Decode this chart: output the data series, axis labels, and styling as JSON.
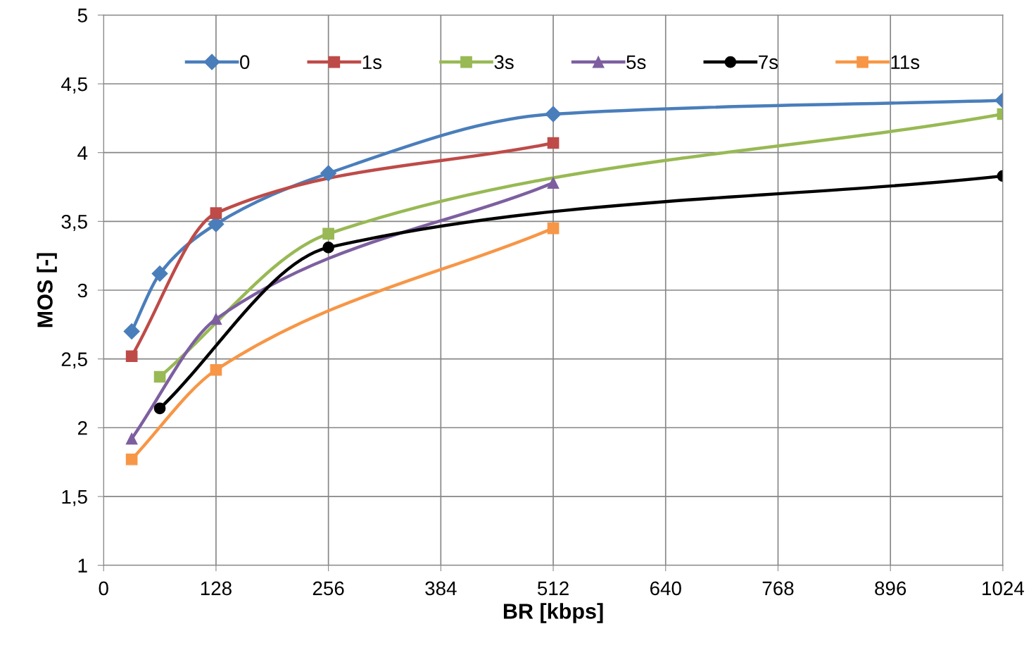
{
  "chart_data": {
    "type": "line",
    "xlabel": "BR [kbps]",
    "ylabel": "MOS [-]",
    "xlim": [
      0,
      1024
    ],
    "xticks": [
      0,
      128,
      256,
      384,
      512,
      640,
      768,
      896,
      1024
    ],
    "ylim": [
      1,
      5
    ],
    "yticks": [
      1,
      {
        "value": 1.5,
        "label": "1,5"
      },
      2,
      {
        "value": 2.5,
        "label": "2,5"
      },
      3,
      {
        "value": 3.5,
        "label": "3,5"
      },
      4,
      {
        "value": 4.5,
        "label": "4,5"
      },
      5
    ],
    "grid": true,
    "legend": "top",
    "line_style": "solid",
    "series": [
      {
        "name": "0",
        "color": "#4a7ebb",
        "marker": "diamond",
        "x": [
          32,
          64,
          128,
          256,
          512,
          1024
        ],
        "values": [
          2.7,
          3.12,
          3.48,
          3.85,
          4.28,
          4.38
        ]
      },
      {
        "name": "1s",
        "color": "#be4b48",
        "marker": "square",
        "x": [
          32,
          128,
          512
        ],
        "values": [
          2.52,
          3.56,
          4.07
        ]
      },
      {
        "name": "3s",
        "color": "#98b954",
        "marker": "square",
        "x": [
          64,
          256,
          1024
        ],
        "values": [
          2.37,
          3.41,
          4.28
        ]
      },
      {
        "name": "5s",
        "color": "#7d5fa0",
        "marker": "triangle",
        "x": [
          32,
          128,
          512
        ],
        "values": [
          1.92,
          2.79,
          3.78
        ]
      },
      {
        "name": "7s",
        "color": "#000000",
        "marker": "circle",
        "x": [
          64,
          256,
          1024
        ],
        "values": [
          2.14,
          3.31,
          3.83
        ]
      },
      {
        "name": "11s",
        "color": "#f79646",
        "marker": "square",
        "x": [
          32,
          128,
          512
        ],
        "values": [
          1.77,
          2.42,
          3.45
        ]
      }
    ]
  }
}
